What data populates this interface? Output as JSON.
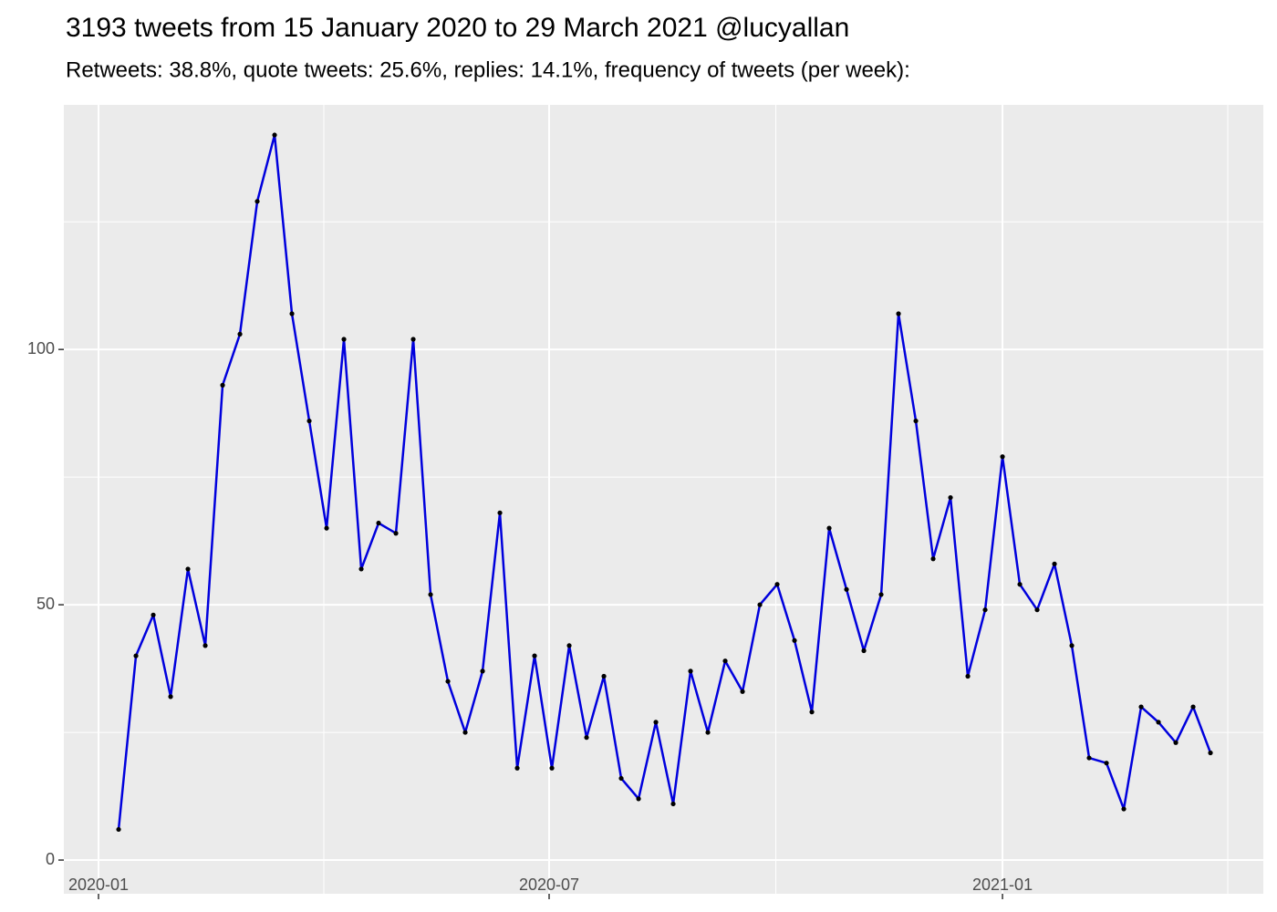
{
  "chart_data": {
    "type": "line",
    "title": "3193 tweets from 15 January 2020 to 29 March 2021 @lucyallan",
    "subtitle": "Retweets: 38.8%, quote tweets: 25.6%, replies: 14.1%, frequency of tweets (per week):",
    "categories": [
      null,
      null,
      null,
      null,
      null,
      null,
      null,
      null,
      null,
      null,
      null,
      null,
      null,
      null,
      null,
      null,
      null,
      null,
      null,
      null,
      null,
      null,
      null,
      null,
      null,
      null,
      null,
      null,
      null,
      null,
      null,
      null,
      null,
      null,
      null,
      null,
      null,
      null,
      null,
      null,
      null,
      null,
      null,
      null,
      null,
      null,
      null,
      null,
      null,
      null,
      null,
      null,
      null,
      null,
      null,
      null,
      null,
      null,
      null,
      null,
      null,
      null,
      null,
      null
    ],
    "values": [
      6,
      40,
      48,
      32,
      57,
      42,
      93,
      103,
      129,
      142,
      107,
      86,
      65,
      102,
      57,
      66,
      64,
      102,
      52,
      35,
      25,
      37,
      68,
      18,
      40,
      18,
      42,
      24,
      36,
      16,
      12,
      27,
      11,
      37,
      25,
      39,
      33,
      50,
      54,
      43,
      29,
      65,
      53,
      41,
      52,
      107,
      86,
      59,
      71,
      36,
      49,
      79,
      54,
      49,
      58,
      42,
      20,
      19,
      10,
      30,
      27,
      23,
      30,
      21
    ],
    "color": "#0000dd",
    "point_color": "#000000",
    "xlim": [
      -3.16,
      66.05
    ],
    "xticks": [
      {
        "value": -1.16,
        "label": "2020-01"
      },
      {
        "value": 24.84,
        "label": "2020-07"
      },
      {
        "value": 51.0,
        "label": "2021-01"
      }
    ],
    "ylim": [
      -6.6,
      147.9
    ],
    "yticks": [
      0,
      50,
      100
    ],
    "grid": true
  }
}
